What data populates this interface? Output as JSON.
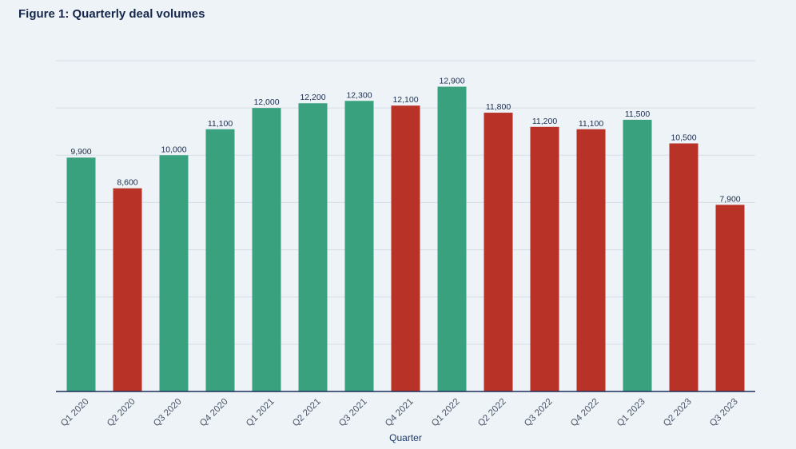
{
  "figure": {
    "title": "Figure 1: Quarterly deal volumes"
  },
  "chart_data": {
    "type": "bar",
    "title": "Figure 1: Quarterly deal volumes",
    "xlabel": "Quarter",
    "ylabel": "",
    "categories": [
      "Q1 2020",
      "Q2 2020",
      "Q3 2020",
      "Q4 2020",
      "Q1 2021",
      "Q2 2021",
      "Q3 2021",
      "Q4 2021",
      "Q1 2022",
      "Q2 2022",
      "Q3 2022",
      "Q4 2022",
      "Q1 2023",
      "Q2 2023",
      "Q3 2023"
    ],
    "values": [
      9900,
      8600,
      10000,
      11100,
      12000,
      12200,
      12300,
      12100,
      12900,
      11800,
      11200,
      11100,
      11500,
      10500,
      7900
    ],
    "value_labels": [
      "9,900",
      "8,600",
      "10,000",
      "11,100",
      "12,000",
      "12,200",
      "12,300",
      "12,100",
      "12,900",
      "11,800",
      "11,200",
      "11,100",
      "11,500",
      "10,500",
      "7,900"
    ],
    "bar_status": [
      "increase",
      "decrease",
      "increase",
      "increase",
      "increase",
      "increase",
      "increase",
      "decrease",
      "increase",
      "decrease",
      "decrease",
      "decrease",
      "increase",
      "decrease",
      "decrease"
    ],
    "colors": {
      "increase": "#3aa17e",
      "decrease": "#b83227"
    },
    "ylim": [
      0,
      14000
    ],
    "y_gridlines": [
      2000,
      4000,
      6000,
      8000,
      10000,
      12000,
      14000
    ],
    "grid": true,
    "legend": "none"
  }
}
